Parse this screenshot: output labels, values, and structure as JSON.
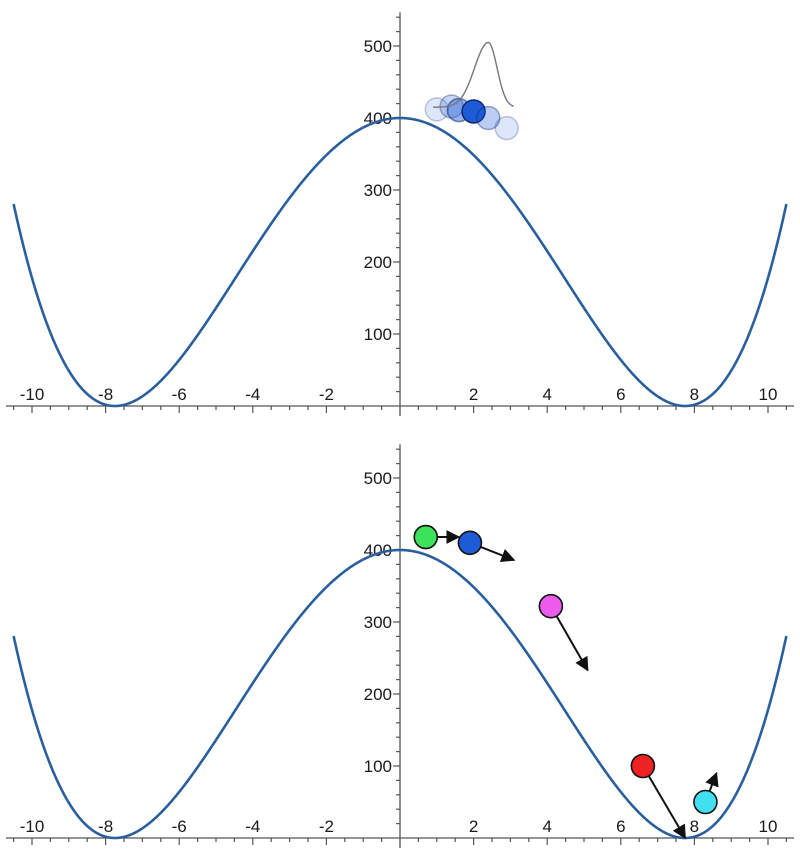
{
  "chart_data": [
    {
      "type": "line",
      "title": "",
      "xlabel": "",
      "ylabel": "",
      "xlim": [
        -10.5,
        10.5
      ],
      "ylim": [
        0,
        540
      ],
      "x_ticks": [
        -10,
        -8,
        -6,
        -4,
        -2,
        2,
        4,
        6,
        8,
        10
      ],
      "y_ticks": [
        100,
        200,
        300,
        400,
        500
      ],
      "series": [
        {
          "function": "(x^2 - 60)^2 / 9",
          "x_range": [
            -10.5,
            10.5
          ],
          "color": "#2a5f9e"
        }
      ],
      "annotations": [
        {
          "type": "ball-cluster",
          "color": "#1f5bd6",
          "balls": [
            {
              "x": 1.0,
              "y": 412,
              "opacity": 0.15
            },
            {
              "x": 1.4,
              "y": 416,
              "opacity": 0.25
            },
            {
              "x": 1.6,
              "y": 411,
              "opacity": 0.45
            },
            {
              "x": 2.0,
              "y": 409,
              "opacity": 1.0
            },
            {
              "x": 2.4,
              "y": 400,
              "opacity": 0.3
            },
            {
              "x": 2.9,
              "y": 386,
              "opacity": 0.15
            }
          ]
        },
        {
          "type": "distribution-sketch",
          "x_range": [
            0.9,
            3.1
          ],
          "baseline": 415,
          "peak_x": 2.4,
          "peak": 505,
          "color": "#777777"
        }
      ]
    },
    {
      "type": "line",
      "title": "",
      "xlabel": "",
      "ylabel": "",
      "xlim": [
        -10.5,
        10.5
      ],
      "ylim": [
        0,
        540
      ],
      "x_ticks": [
        -10,
        -8,
        -6,
        -4,
        -2,
        2,
        4,
        6,
        8,
        10
      ],
      "y_ticks": [
        100,
        200,
        300,
        400,
        500
      ],
      "series": [
        {
          "function": "(x^2 - 60)^2 / 9",
          "x_range": [
            -10.5,
            10.5
          ],
          "color": "#2a5f9e"
        }
      ],
      "balls": [
        {
          "color": "#3ce35a",
          "x": 0.7,
          "y": 418,
          "arrow_to": [
            1.6,
            418
          ]
        },
        {
          "color": "#1f5bd6",
          "x": 1.9,
          "y": 410,
          "arrow_to": [
            3.1,
            386
          ]
        },
        {
          "color": "#ee5cee",
          "x": 4.1,
          "y": 322,
          "arrow_to": [
            5.1,
            233
          ]
        },
        {
          "color": "#ee2222",
          "x": 6.6,
          "y": 100,
          "arrow_to": [
            7.75,
            0
          ]
        },
        {
          "color": "#40e0f0",
          "x": 8.3,
          "y": 50,
          "arrow_to": [
            8.6,
            90
          ]
        }
      ]
    }
  ]
}
